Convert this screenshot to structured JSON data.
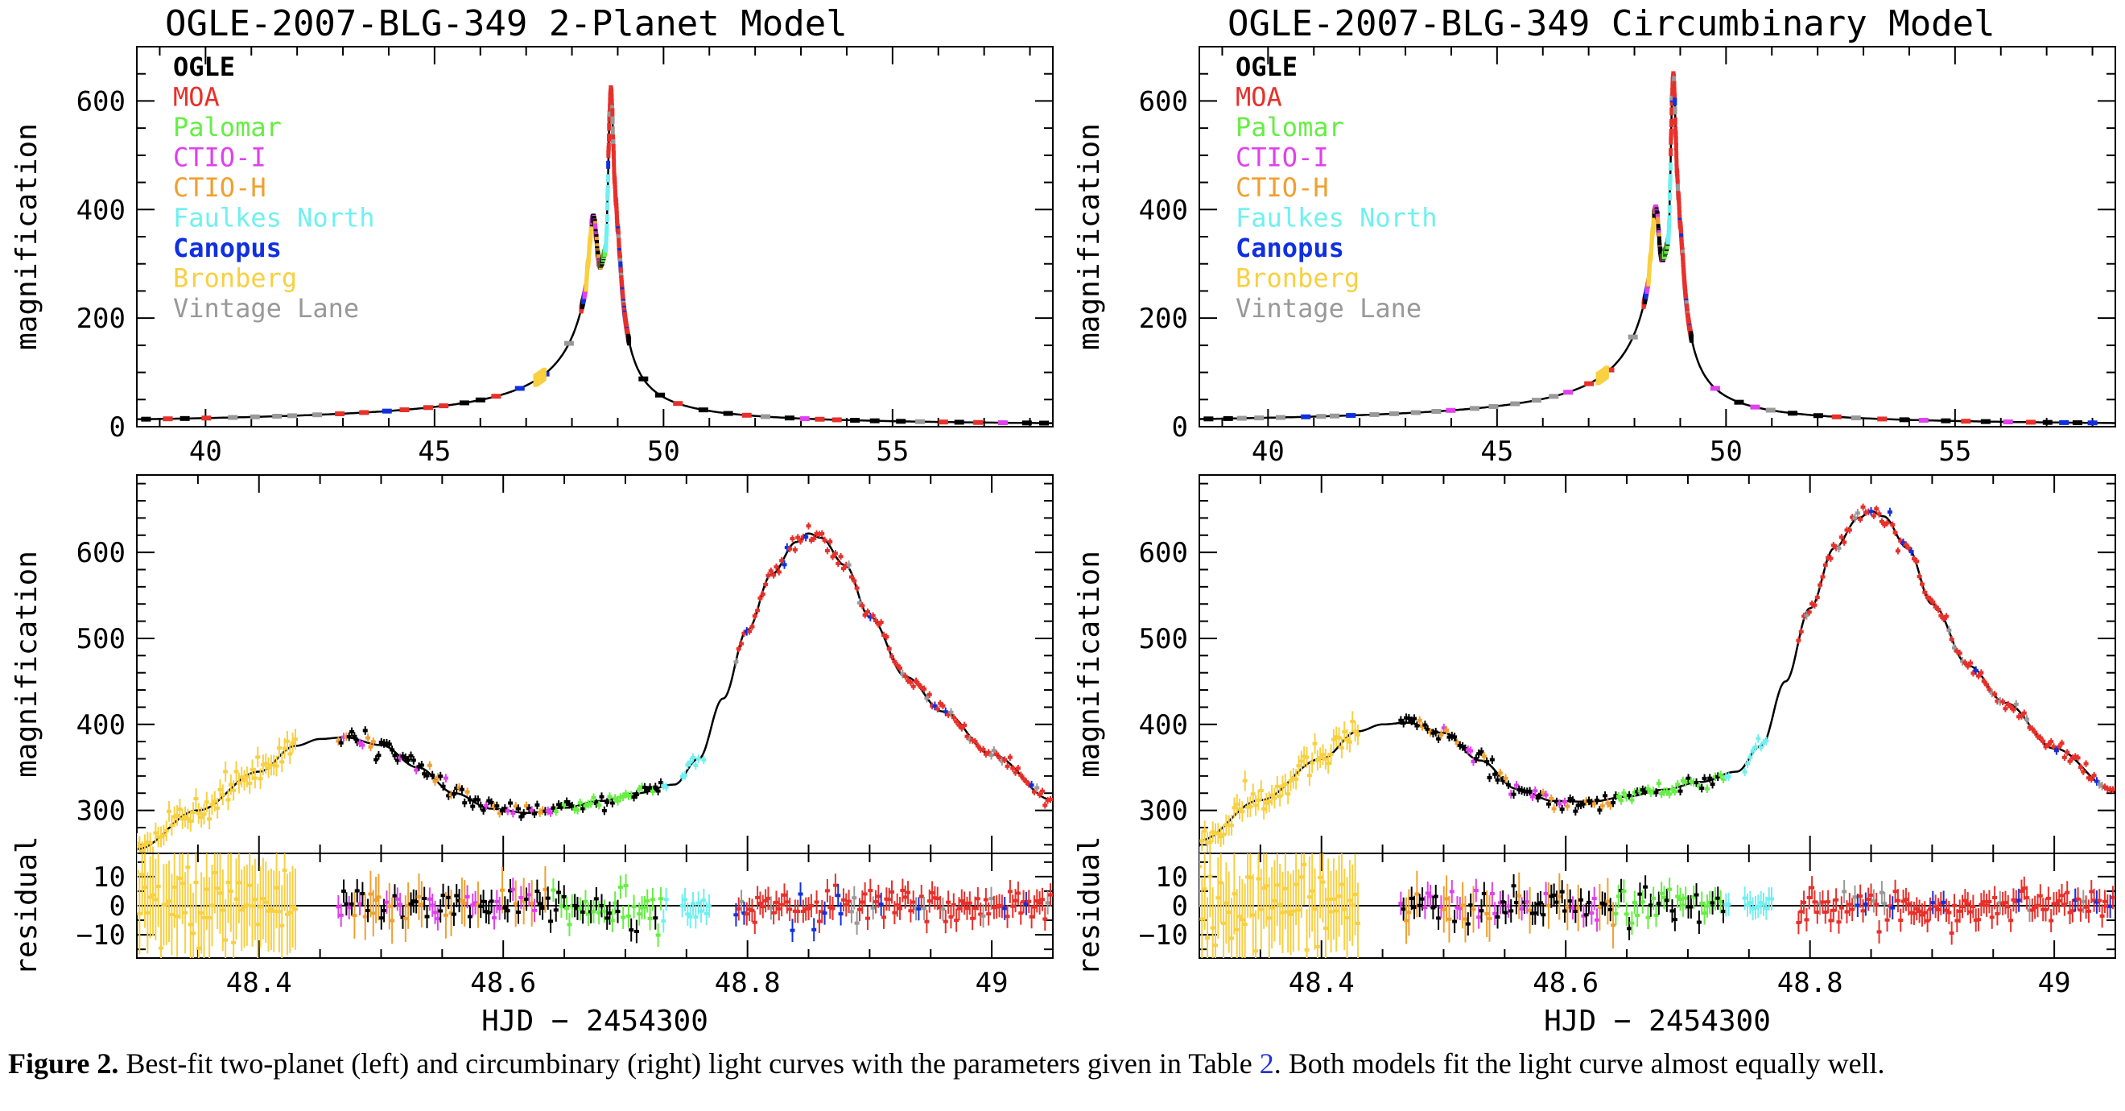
{
  "colors": {
    "OGLE": "#000000",
    "MOA": "#e8302a",
    "Palomar": "#66ee44",
    "CTIO-I": "#e040ee",
    "CTIO-H": "#f0a030",
    "Faulkes North": "#70f0f0",
    "Canopus": "#1030e0",
    "Bronberg": "#f8d040",
    "Vintage Lane": "#999999",
    "model": "#000000"
  },
  "legend": [
    "OGLE",
    "MOA",
    "Palomar",
    "CTIO-I",
    "CTIO-H",
    "Faulkes North",
    "Canopus",
    "Bronberg",
    "Vintage Lane"
  ],
  "caption": {
    "label": "Figure 2.",
    "text_before": " Best-fit two-planet (left) and circumbinary (right) light curves with the parameters given in Table ",
    "link": "2",
    "text_after": ". Both models fit the light curve almost equally well."
  },
  "chart_data": [
    {
      "type": "scatter",
      "title": "OGLE-2007-BLG-349 2-Planet Model",
      "xlabel": "",
      "ylabel": "magnification",
      "xlim": [
        38.5,
        58.5
      ],
      "ylim": [
        0,
        700
      ],
      "xticks": [
        40,
        45,
        50,
        55
      ],
      "yticks": [
        0,
        200,
        400,
        600
      ],
      "legend_placement": "top-left",
      "peaks": [
        {
          "x": 48.47,
          "y": 385
        },
        {
          "x": 48.62,
          "y": 297
        },
        {
          "x": 48.85,
          "y": 622
        }
      ],
      "series": [
        {
          "name": "OGLE"
        },
        {
          "name": "MOA"
        },
        {
          "name": "Palomar"
        },
        {
          "name": "CTIO-I"
        },
        {
          "name": "CTIO-H"
        },
        {
          "name": "Faulkes North"
        },
        {
          "name": "Canopus"
        },
        {
          "name": "Bronberg"
        },
        {
          "name": "Vintage Lane"
        }
      ]
    },
    {
      "type": "scatter",
      "title": "OGLE-2007-BLG-349 Circumbinary Model",
      "xlabel": "",
      "ylabel": "magnification",
      "xlim": [
        38.5,
        58.5
      ],
      "ylim": [
        0,
        700
      ],
      "xticks": [
        40,
        45,
        50,
        55
      ],
      "yticks": [
        0,
        200,
        400,
        600
      ],
      "legend_placement": "top-left",
      "peaks": [
        {
          "x": 48.47,
          "y": 402
        },
        {
          "x": 48.6,
          "y": 310
        },
        {
          "x": 48.85,
          "y": 648
        }
      ]
    },
    {
      "type": "scatter",
      "title": "",
      "xlabel": "",
      "ylabel": "magnification",
      "xlim": [
        48.3,
        49.05
      ],
      "ylim": [
        250,
        690
      ],
      "xticks": [
        48.4,
        48.6,
        48.8,
        49
      ],
      "yticks": [
        300,
        400,
        500,
        600
      ],
      "model_curve": {
        "x": [
          48.3,
          48.35,
          48.4,
          48.43,
          48.45,
          48.47,
          48.5,
          48.53,
          48.56,
          48.59,
          48.62,
          48.65,
          48.68,
          48.71,
          48.74,
          48.76,
          48.78,
          48.8,
          48.82,
          48.84,
          48.85,
          48.86,
          48.88,
          48.9,
          48.93,
          48.96,
          49.0,
          49.05
        ],
        "y": [
          255,
          300,
          345,
          375,
          383,
          385,
          376,
          350,
          320,
          302,
          297,
          303,
          311,
          320,
          330,
          360,
          430,
          510,
          575,
          612,
          622,
          617,
          585,
          525,
          455,
          415,
          365,
          312
        ]
      }
    },
    {
      "type": "scatter",
      "title": "",
      "xlabel": "",
      "ylabel": "magnification",
      "xlim": [
        48.3,
        49.05
      ],
      "ylim": [
        250,
        690
      ],
      "xticks": [
        48.4,
        48.6,
        48.8,
        49
      ],
      "yticks": [
        300,
        400,
        500,
        600
      ],
      "model_curve": {
        "x": [
          48.3,
          48.35,
          48.4,
          48.43,
          48.45,
          48.47,
          48.5,
          48.53,
          48.56,
          48.59,
          48.62,
          48.65,
          48.68,
          48.71,
          48.74,
          48.76,
          48.78,
          48.8,
          48.82,
          48.84,
          48.85,
          48.86,
          48.88,
          48.9,
          48.93,
          48.96,
          49.0,
          49.05
        ],
        "y": [
          265,
          312,
          360,
          392,
          400,
          402,
          390,
          358,
          325,
          311,
          310,
          316,
          324,
          333,
          345,
          375,
          450,
          535,
          605,
          640,
          648,
          642,
          605,
          540,
          468,
          425,
          372,
          322
        ]
      }
    },
    {
      "type": "scatter",
      "title": "",
      "xlabel": "HJD − 2454300",
      "ylabel": "residual",
      "xlim": [
        48.3,
        49.05
      ],
      "ylim": [
        -18,
        18
      ],
      "xticks": [
        48.4,
        48.6,
        48.8,
        49
      ],
      "yticks": [
        -10,
        0,
        10
      ]
    },
    {
      "type": "scatter",
      "title": "",
      "xlabel": "HJD − 2454300",
      "ylabel": "residual",
      "xlim": [
        48.3,
        49.05
      ],
      "ylim": [
        -18,
        18
      ],
      "xticks": [
        48.4,
        48.6,
        48.8,
        49
      ],
      "yticks": [
        -10,
        0,
        10
      ]
    }
  ]
}
